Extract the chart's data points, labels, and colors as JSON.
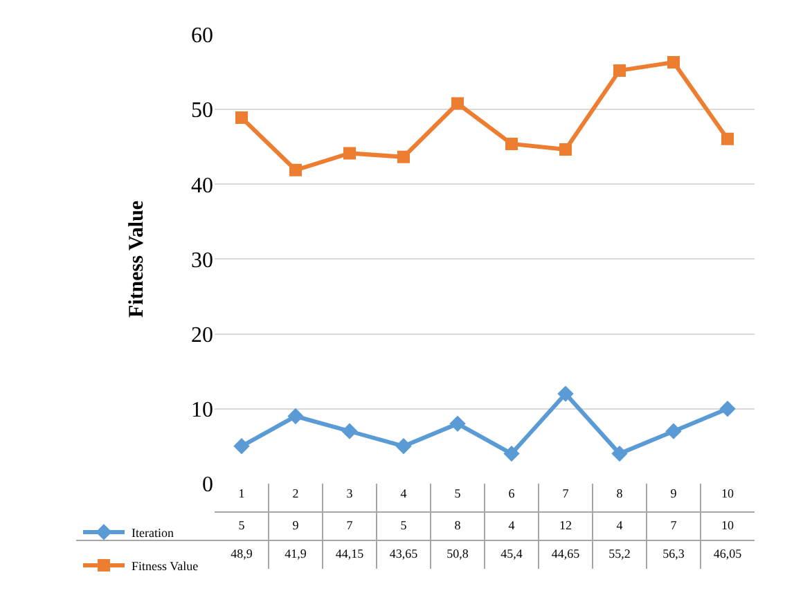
{
  "chart_data": {
    "type": "line",
    "ylabel": "Fitness Value",
    "categories": [
      "1",
      "2",
      "3",
      "4",
      "5",
      "6",
      "7",
      "8",
      "9",
      "10"
    ],
    "series": [
      {
        "name": "Iteration",
        "color": "#5b9bd5",
        "marker": "diamond",
        "values": [
          5,
          9,
          7,
          5,
          8,
          4,
          12,
          4,
          7,
          10
        ],
        "value_labels": [
          "5",
          "9",
          "7",
          "5",
          "8",
          "4",
          "12",
          "4",
          "7",
          "10"
        ]
      },
      {
        "name": "Fitness Value",
        "color": "#ed7d31",
        "marker": "square",
        "values": [
          48.9,
          41.9,
          44.15,
          43.65,
          50.8,
          45.4,
          44.65,
          55.2,
          56.3,
          46.05
        ],
        "value_labels": [
          "48,9",
          "41,9",
          "44,15",
          "43,65",
          "50,8",
          "45,4",
          "44,65",
          "55,2",
          "56,3",
          "46,05"
        ]
      }
    ],
    "ylim": [
      0,
      60
    ],
    "yticks": [
      0,
      10,
      20,
      30,
      40,
      50,
      60
    ],
    "grid": "y",
    "legend": "bottom left",
    "line_style": "solid"
  }
}
